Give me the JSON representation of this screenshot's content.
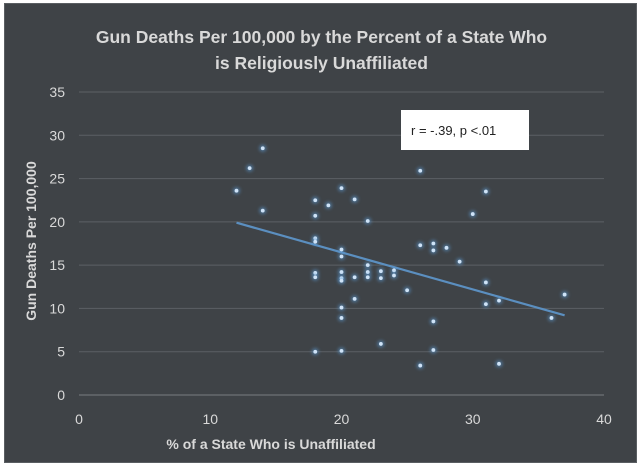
{
  "chart_data": {
    "type": "scatter",
    "title_lines": [
      "Gun Deaths Per 100,000 by the Percent of a State Who",
      "is Religiously Unaffiliated"
    ],
    "xlabel": "% of a State Who is Unaffiliated",
    "ylabel": "Gun Deaths Per 100,000",
    "xlim": [
      0,
      40
    ],
    "ylim": [
      0,
      35
    ],
    "x_ticks": [
      0,
      10,
      20,
      30,
      40
    ],
    "y_ticks": [
      0,
      5,
      10,
      15,
      20,
      25,
      30,
      35
    ],
    "gridlines": "horizontal",
    "annotation": "r = -.39, p <.01",
    "trendline": {
      "x": [
        12,
        37
      ],
      "y": [
        19.9,
        9.2
      ]
    },
    "colors": {
      "background": "#3f4347",
      "point": "#5b9bd5",
      "trendline": "#5b8fc0",
      "text": "#d9d9d9",
      "grid": "#5c6065"
    },
    "points": [
      {
        "x": 12,
        "y": 23.6
      },
      {
        "x": 13,
        "y": 26.2
      },
      {
        "x": 14,
        "y": 28.5
      },
      {
        "x": 14,
        "y": 21.3
      },
      {
        "x": 18,
        "y": 22.5
      },
      {
        "x": 18,
        "y": 20.7
      },
      {
        "x": 18,
        "y": 18.1
      },
      {
        "x": 18,
        "y": 17.7
      },
      {
        "x": 18,
        "y": 14.1
      },
      {
        "x": 18,
        "y": 13.6
      },
      {
        "x": 18,
        "y": 5.0
      },
      {
        "x": 19,
        "y": 21.9
      },
      {
        "x": 20,
        "y": 23.9
      },
      {
        "x": 20,
        "y": 16.8
      },
      {
        "x": 20,
        "y": 16.0
      },
      {
        "x": 20,
        "y": 14.2
      },
      {
        "x": 20,
        "y": 13.5
      },
      {
        "x": 20,
        "y": 13.2
      },
      {
        "x": 20,
        "y": 10.1
      },
      {
        "x": 20,
        "y": 8.9
      },
      {
        "x": 20,
        "y": 5.1
      },
      {
        "x": 21,
        "y": 22.6
      },
      {
        "x": 21,
        "y": 13.6
      },
      {
        "x": 21,
        "y": 11.1
      },
      {
        "x": 22,
        "y": 20.1
      },
      {
        "x": 22,
        "y": 15.0
      },
      {
        "x": 22,
        "y": 14.2
      },
      {
        "x": 22,
        "y": 13.6
      },
      {
        "x": 23,
        "y": 14.3
      },
      {
        "x": 23,
        "y": 13.5
      },
      {
        "x": 23,
        "y": 5.9
      },
      {
        "x": 24,
        "y": 14.4
      },
      {
        "x": 24,
        "y": 13.8
      },
      {
        "x": 25,
        "y": 12.1
      },
      {
        "x": 26,
        "y": 25.9
      },
      {
        "x": 26,
        "y": 17.3
      },
      {
        "x": 26,
        "y": 3.4
      },
      {
        "x": 27,
        "y": 17.5
      },
      {
        "x": 27,
        "y": 16.7
      },
      {
        "x": 27,
        "y": 8.5
      },
      {
        "x": 27,
        "y": 5.2
      },
      {
        "x": 28,
        "y": 17.0
      },
      {
        "x": 29,
        "y": 15.4
      },
      {
        "x": 30,
        "y": 20.9
      },
      {
        "x": 31,
        "y": 23.5
      },
      {
        "x": 31,
        "y": 13.0
      },
      {
        "x": 31,
        "y": 10.5
      },
      {
        "x": 32,
        "y": 10.9
      },
      {
        "x": 32,
        "y": 3.6
      },
      {
        "x": 36,
        "y": 8.9
      },
      {
        "x": 37,
        "y": 11.6
      }
    ]
  }
}
